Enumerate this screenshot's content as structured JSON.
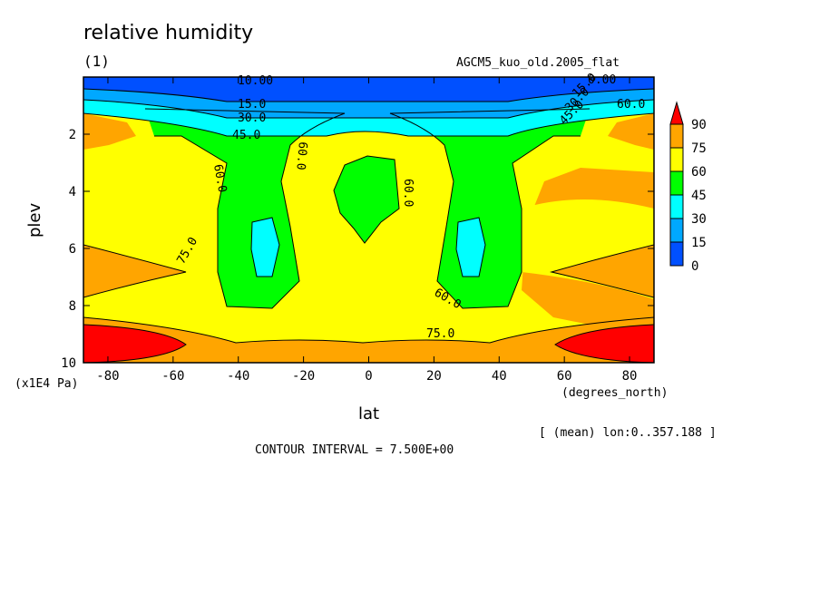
{
  "header": {
    "title": "relative humidity",
    "panel_label": "(1)",
    "dataset": "AGCM5_kuo_old.2005_flat"
  },
  "footer": {
    "mean_info": "[ (mean) lon:0..357.188 ]",
    "contour_interval": "CONTOUR INTERVAL = 7.500E+00"
  },
  "chart_data": {
    "type": "heatmap",
    "title": "relative humidity",
    "xlabel": "lat",
    "x_units": "(degrees_north)",
    "ylabel": "plev",
    "y_units": "(x1E4 Pa)",
    "xlim": [
      -87.5,
      87.5
    ],
    "ylim": [
      10,
      0
    ],
    "x_ticks": [
      -80,
      -60,
      -40,
      -20,
      0,
      20,
      40,
      60,
      80
    ],
    "x_tick_labels": [
      "-80",
      "-60",
      "-40",
      "-20",
      "0",
      "20",
      "40",
      "60",
      "80"
    ],
    "y_ticks": [
      2,
      4,
      6,
      8,
      10
    ],
    "y_tick_labels": [
      "2",
      "4",
      "6",
      "8",
      "10"
    ],
    "contour_interval": 7.5,
    "color_levels": [
      0,
      15,
      30,
      45,
      60,
      75,
      90
    ],
    "color_level_labels": [
      "0",
      "15",
      "30",
      "45",
      "60",
      "75",
      "90"
    ],
    "colors": [
      "#0050ff",
      "#00a8ff",
      "#00ffff",
      "#00ff00",
      "#ffff00",
      "#ffa500",
      "#ff0000"
    ],
    "contour_labels": [
      "10.00",
      "15.0",
      "30.0",
      "45.0",
      "60.0",
      "60.0",
      "60.0",
      "75.0",
      "60.0",
      "75.0",
      "0.00",
      "15.0",
      "30.0",
      "45.0",
      "60.0"
    ]
  }
}
